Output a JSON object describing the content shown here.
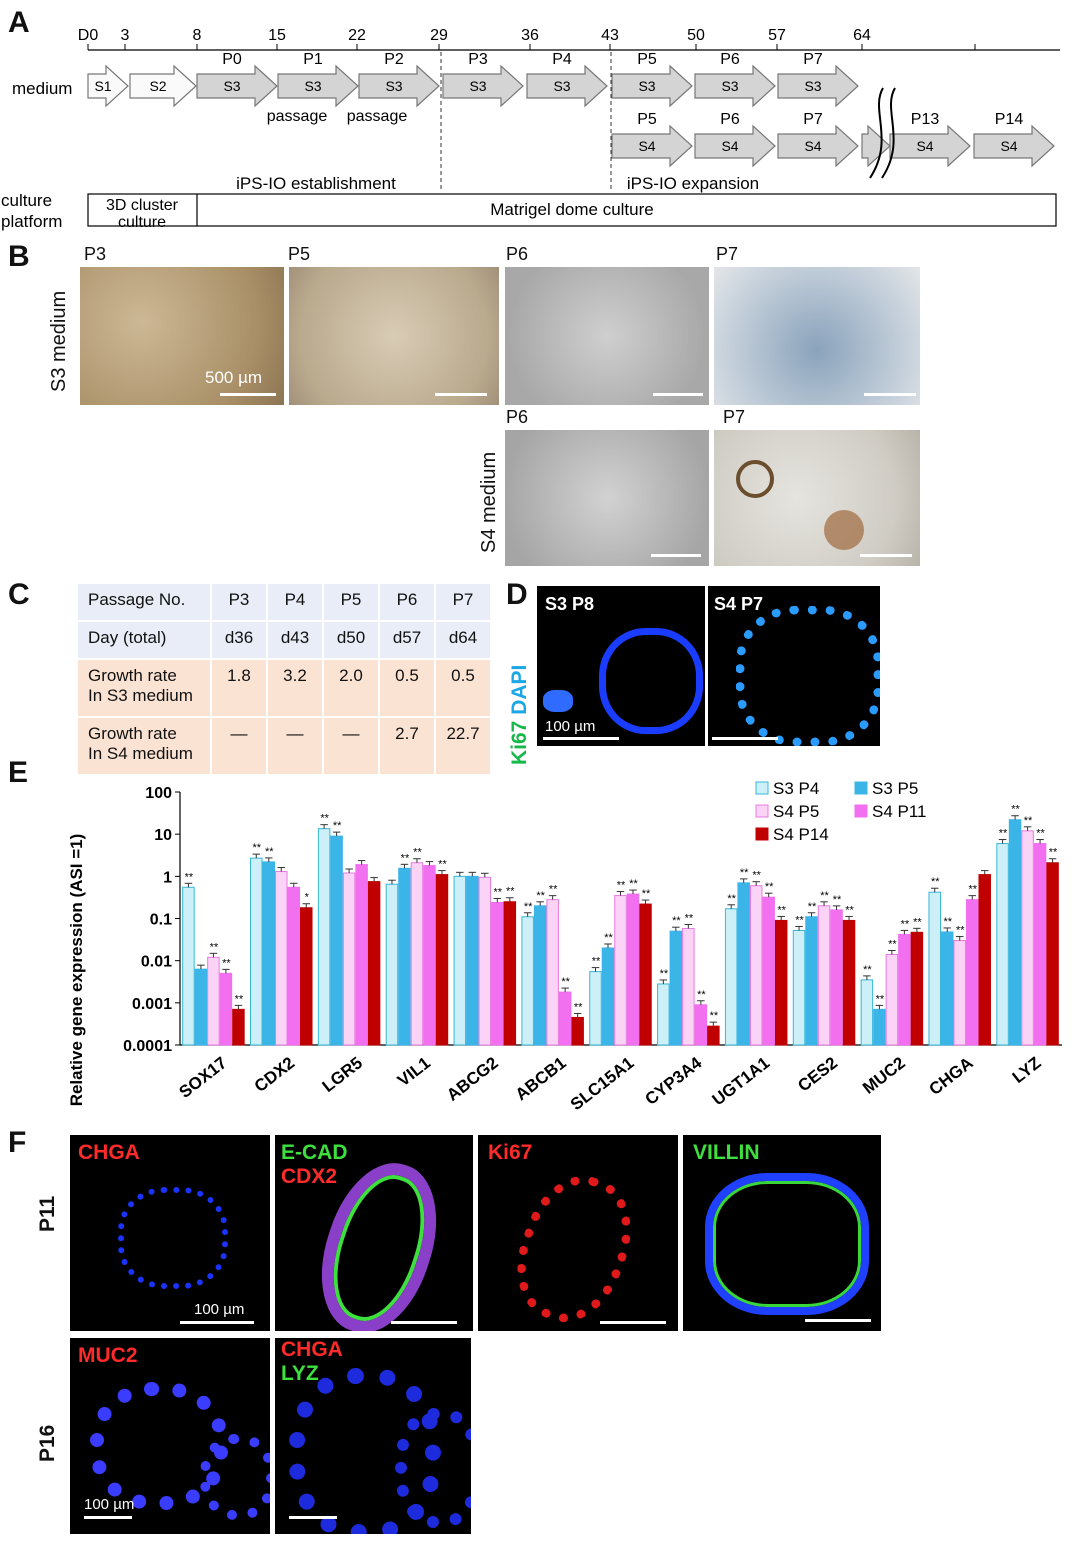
{
  "panels": {
    "A": "A",
    "B": "B",
    "C": "C",
    "D": "D",
    "E": "E",
    "F": "F"
  },
  "panel_a": {
    "days": [
      "D0",
      "3",
      "8",
      "15",
      "22",
      "29",
      "36",
      "43",
      "50",
      "57",
      "64"
    ],
    "medium_label": "medium",
    "row1": [
      {
        "passage": "",
        "medium": "S1"
      },
      {
        "passage": "",
        "medium": "S2"
      },
      {
        "passage": "P0",
        "medium": "S3"
      },
      {
        "passage": "P1",
        "medium": "S3"
      },
      {
        "passage": "P2",
        "medium": "S3"
      },
      {
        "passage": "P3",
        "medium": "S3"
      },
      {
        "passage": "P4",
        "medium": "S3"
      },
      {
        "passage": "P5",
        "medium": "S3"
      },
      {
        "passage": "P6",
        "medium": "S3"
      },
      {
        "passage": "P7",
        "medium": "S3"
      }
    ],
    "row2": [
      {
        "passage": "P5",
        "medium": "S4"
      },
      {
        "passage": "P6",
        "medium": "S4"
      },
      {
        "passage": "P7",
        "medium": "S4"
      },
      {
        "passage": "",
        "medium": ""
      },
      {
        "passage": "P13",
        "medium": "S4"
      },
      {
        "passage": "P14",
        "medium": "S4"
      }
    ],
    "passage_notes": [
      "passage",
      "passage"
    ],
    "phase_establishment": "iPS-IO establishment",
    "phase_expansion": "iPS-IO expansion",
    "platform_label_1": "culture",
    "platform_label_2": "platform",
    "platform_3d_1": "3D  cluster",
    "platform_3d_2": "culture",
    "platform_matrigel": "Matrigel dome culture"
  },
  "panel_b": {
    "s3_label": "S3 medium",
    "s4_label": "S4 medium",
    "s3_images": [
      "P3",
      "P5",
      "P6",
      "P7"
    ],
    "s4_images": [
      "P6",
      "P7"
    ],
    "scale_bar": "500 µm"
  },
  "panel_c": {
    "row_passage": {
      "label": "Passage No.",
      "values": [
        "P3",
        "P4",
        "P5",
        "P6",
        "P7"
      ]
    },
    "row_day": {
      "label": "Day (total)",
      "values": [
        "d36",
        "d43",
        "d50",
        "d57",
        "d64"
      ]
    },
    "row_s3": {
      "label_1": "Growth rate",
      "label_2": "In S3 medium",
      "values": [
        "1.8",
        "3.2",
        "2.0",
        "0.5",
        "0.5"
      ]
    },
    "row_s4": {
      "label_1": "Growth rate",
      "label_2": "In S4 medium",
      "values": [
        "—",
        "—",
        "—",
        "2.7",
        "22.7"
      ]
    }
  },
  "panel_d": {
    "stain_ki67": "Ki67",
    "stain_dapi": "DAPI",
    "image_1": "S3 P8",
    "image_2": "S4 P7",
    "scale_bar": "100 µm"
  },
  "chart_data": {
    "type": "bar",
    "ylabel": "Relative gene expression (ASI =1)",
    "yscale": "log",
    "ylim": [
      0.0001,
      100
    ],
    "yticks": [
      "0.0001",
      "0.001",
      "0.01",
      "0.1",
      "1",
      "10",
      "100"
    ],
    "legend_position": "top-right",
    "categories": [
      "SOX17",
      "CDX2",
      "LGR5",
      "VIL1",
      "ABCG2",
      "ABCB1",
      "SLC15A1",
      "CYP3A4",
      "UGT1A1",
      "CES2",
      "MUC2",
      "CHGA",
      "LYZ"
    ],
    "series": [
      {
        "name": "S3 P4",
        "color": "#cdeff8",
        "stroke": "#36b8d8",
        "values": [
          0.55,
          2.7,
          13.5,
          0.65,
          1.0,
          0.11,
          0.0055,
          0.0028,
          0.17,
          0.052,
          0.0035,
          0.42,
          6.0
        ],
        "sig": [
          "**",
          "**",
          "**",
          "",
          "",
          "**",
          "**",
          "**",
          "**",
          "**",
          "**",
          "**",
          "**"
        ]
      },
      {
        "name": "S3 P5",
        "color": "#3bb4e8",
        "stroke": "#3bb4e8",
        "values": [
          0.0063,
          2.2,
          9.0,
          1.55,
          1.0,
          0.2,
          0.02,
          0.05,
          0.7,
          0.11,
          0.0007,
          0.048,
          22.0
        ],
        "sig": [
          "",
          "**",
          "**",
          "**",
          "",
          "**",
          "**",
          "**",
          "**",
          "**",
          "**",
          "**",
          "**"
        ]
      },
      {
        "name": "S4 P5",
        "color": "#fbd3f6",
        "stroke": "#e87ae0",
        "values": [
          0.012,
          1.3,
          1.2,
          2.1,
          0.95,
          0.28,
          0.35,
          0.058,
          0.6,
          0.2,
          0.014,
          0.03,
          12.0
        ],
        "sig": [
          "**",
          "",
          "",
          "**",
          "",
          "**",
          "**",
          "**",
          "**",
          "**",
          "**",
          "**",
          "**"
        ]
      },
      {
        "name": "S4 P11",
        "color": "#f26ff0",
        "stroke": "#f26ff0",
        "values": [
          0.005,
          0.55,
          1.9,
          1.8,
          0.24,
          0.0018,
          0.38,
          0.0009,
          0.32,
          0.16,
          0.042,
          0.28,
          6.0
        ],
        "sig": [
          "**",
          "",
          "",
          "",
          "**",
          "**",
          "**",
          "**",
          "**",
          "**",
          "**",
          "**",
          "**"
        ]
      },
      {
        "name": "S4 P14",
        "color": "#c00000",
        "stroke": "#c00000",
        "values": [
          0.0007,
          0.18,
          0.75,
          1.1,
          0.25,
          0.00045,
          0.22,
          0.00028,
          0.09,
          0.09,
          0.047,
          1.1,
          2.1
        ],
        "sig": [
          "**",
          "*",
          "",
          "**",
          "**",
          "**",
          "**",
          "**",
          "**",
          "**",
          "**",
          "",
          "**"
        ]
      }
    ]
  },
  "panel_f": {
    "row_p11": "P11",
    "row_p16": "P16",
    "scale_bar": "100 µm",
    "p11": [
      {
        "labels": [
          {
            "text": "CHGA",
            "color": "#ff2a2a"
          }
        ]
      },
      {
        "labels": [
          {
            "text": "E-CAD",
            "color": "#3ee03e"
          },
          {
            "text": "CDX2",
            "color": "#ff2a2a"
          }
        ]
      },
      {
        "labels": [
          {
            "text": "Ki67",
            "color": "#ff2a2a"
          }
        ]
      },
      {
        "labels": [
          {
            "text": "VILLIN",
            "color": "#3ee03e"
          }
        ]
      }
    ],
    "p16": [
      {
        "labels": [
          {
            "text": "MUC2",
            "color": "#ff2a2a"
          }
        ]
      },
      {
        "labels": [
          {
            "text": "CHGA",
            "color": "#ff2a2a"
          },
          {
            "text": "LYZ",
            "color": "#3ee03e"
          }
        ]
      }
    ]
  }
}
